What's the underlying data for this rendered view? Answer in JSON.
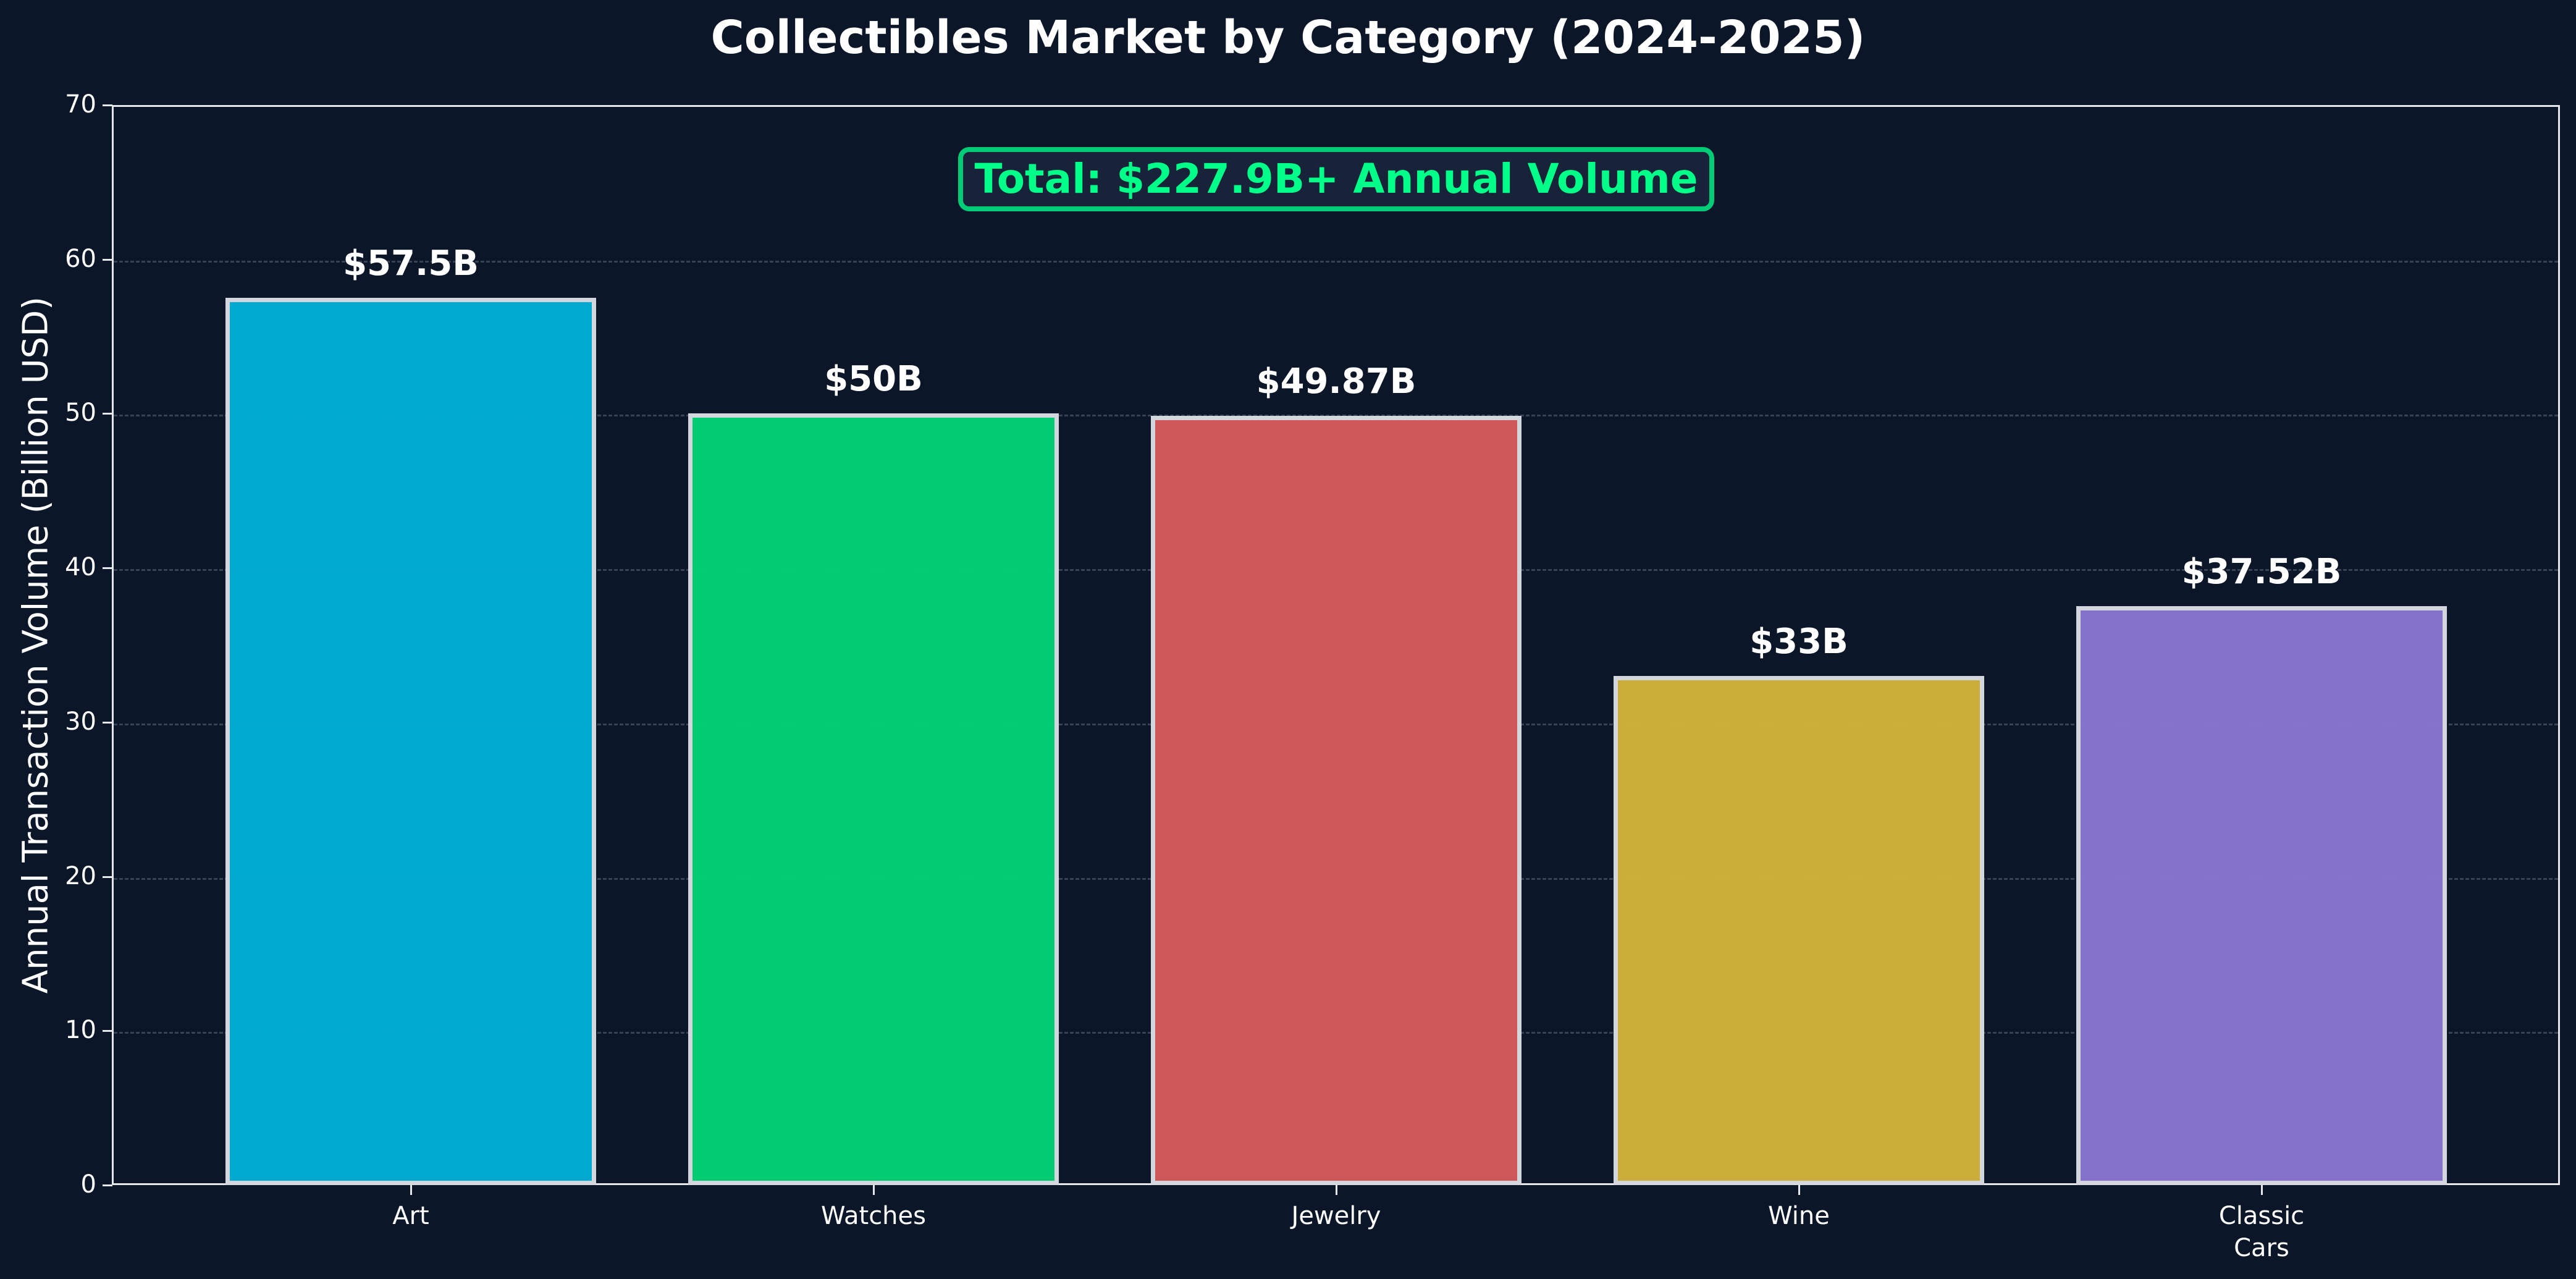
{
  "chart_data": {
    "type": "bar",
    "title": "Collectibles Market by Category (2024-2025)",
    "xlabel": "",
    "ylabel": "Annual Transaction Volume (Billion USD)",
    "categories": [
      "Art",
      "Watches",
      "Jewelry",
      "Wine",
      "Classic\nCars"
    ],
    "values": [
      57.5,
      50,
      49.87,
      33,
      37.52
    ],
    "data_labels": [
      "$57.5B",
      "$50B",
      "$49.87B",
      "$33B",
      "$37.52B"
    ],
    "colors": [
      "#00acd4",
      "#03cf74",
      "#d05a5c",
      "#cfb13a",
      "#8775cd"
    ],
    "ylim": [
      0,
      70
    ],
    "yticks": [
      0,
      10,
      20,
      30,
      40,
      50,
      60,
      70
    ],
    "grid": "y-dashed",
    "legend": null,
    "annotation": "Total: $227.9B+ Annual Volume",
    "annotation_color": "#00ff88"
  },
  "title": "Collectibles Market by Category (2024-2025)",
  "ylabel": "Annual Transaction Volume (Billion USD)",
  "annotation": "Total: $227.9B+ Annual Volume",
  "yticks": [
    "0",
    "10",
    "20",
    "30",
    "40",
    "50",
    "60",
    "70"
  ],
  "bars": [
    {
      "category": "Art",
      "label": "$57.5B"
    },
    {
      "category": "Watches",
      "label": "$50B"
    },
    {
      "category": "Jewelry",
      "label": "$49.87B"
    },
    {
      "category": "Wine",
      "label": "$33B"
    },
    {
      "category": "Classic\nCars",
      "label": "$37.52B"
    }
  ]
}
